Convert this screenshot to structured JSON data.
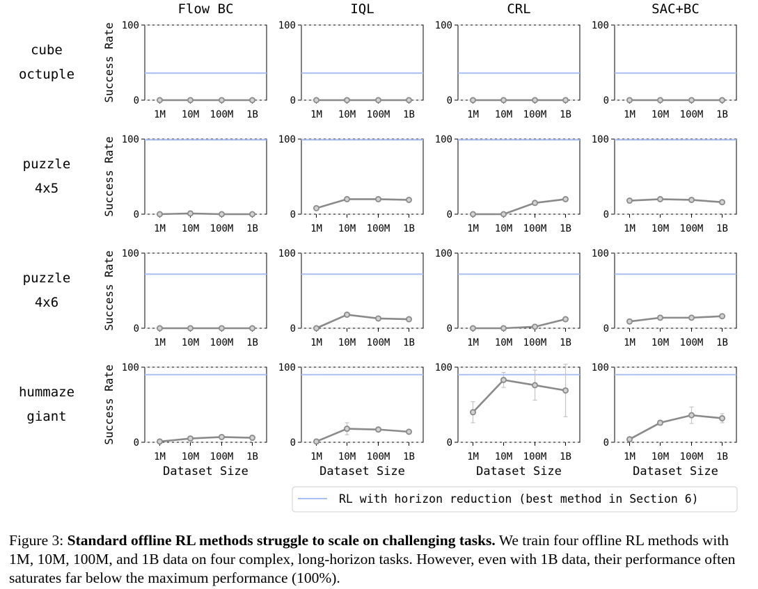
{
  "chart_data": {
    "type": "line",
    "methods": [
      "Flow BC",
      "IQL",
      "CRL",
      "SAC+BC"
    ],
    "tasks": [
      {
        "label_lines": [
          "cube",
          "octuple"
        ],
        "rl_reference": 36
      },
      {
        "label_lines": [
          "puzzle",
          "4x5"
        ],
        "rl_reference": 99
      },
      {
        "label_lines": [
          "puzzle",
          "4x6"
        ],
        "rl_reference": 72
      },
      {
        "label_lines": [
          "hummaze",
          "giant"
        ],
        "rl_reference": 90
      }
    ],
    "x": [
      "1M",
      "10M",
      "100M",
      "1B"
    ],
    "ylabel": "Success Rate",
    "xlabel": "Dataset Size",
    "ylim": [
      0,
      100
    ],
    "yticks": [
      "0",
      "100"
    ],
    "series": [
      [
        {
          "values": [
            0,
            0,
            0,
            0
          ],
          "errors": [
            0,
            0,
            0,
            0
          ]
        },
        {
          "values": [
            0,
            0,
            0,
            0
          ],
          "errors": [
            0,
            0,
            0,
            0
          ]
        },
        {
          "values": [
            0,
            0,
            0,
            0
          ],
          "errors": [
            0,
            0,
            0,
            0
          ]
        },
        {
          "values": [
            0,
            0,
            0,
            0
          ],
          "errors": [
            0,
            0,
            0,
            0
          ]
        }
      ],
      [
        {
          "values": [
            0,
            1,
            0,
            0
          ],
          "errors": [
            0,
            0,
            0,
            0
          ]
        },
        {
          "values": [
            8,
            20,
            20,
            19
          ],
          "errors": [
            0,
            0,
            0,
            0
          ]
        },
        {
          "values": [
            0,
            0,
            15,
            20
          ],
          "errors": [
            0,
            0,
            0,
            0
          ]
        },
        {
          "values": [
            18,
            20,
            19,
            16
          ],
          "errors": [
            0,
            0,
            0,
            0
          ]
        }
      ],
      [
        {
          "values": [
            0,
            0,
            0,
            0
          ],
          "errors": [
            0,
            0,
            0,
            0
          ]
        },
        {
          "values": [
            0,
            18,
            13,
            12
          ],
          "errors": [
            0,
            2,
            0,
            0
          ]
        },
        {
          "values": [
            0,
            0,
            2,
            12
          ],
          "errors": [
            0,
            0,
            0,
            0
          ]
        },
        {
          "values": [
            9,
            14,
            14,
            16
          ],
          "errors": [
            0,
            3,
            0,
            0
          ]
        }
      ],
      [
        {
          "values": [
            1,
            5,
            7,
            6
          ],
          "errors": [
            0,
            0,
            0,
            0
          ]
        },
        {
          "values": [
            1,
            18,
            17,
            14
          ],
          "errors": [
            0,
            8,
            0,
            0
          ]
        },
        {
          "values": [
            40,
            83,
            76,
            69
          ],
          "errors": [
            14,
            10,
            20,
            35
          ]
        },
        {
          "values": [
            4,
            26,
            36,
            32
          ],
          "errors": [
            0,
            3,
            11,
            6
          ]
        }
      ]
    ],
    "legend": {
      "label": "RL with horizon reduction (best method in Section 6)",
      "position": "bottom-right"
    },
    "colors": {
      "series": "#8a8a8a",
      "marker_fill": "#d2d2d2",
      "reference": "#a9bff5",
      "errorbar": "#c4c4c4",
      "grid": "#cfcfcf"
    }
  },
  "caption": {
    "prefix": "Figure 3: ",
    "bold": "Standard offline RL methods struggle to scale on challenging tasks.",
    "text": " We train four offline RL methods with 1M, 10M, 100M, and 1B data on four complex, long-horizon tasks. However, even with 1B data, their performance often saturates far below the maximum performance (100%)."
  }
}
